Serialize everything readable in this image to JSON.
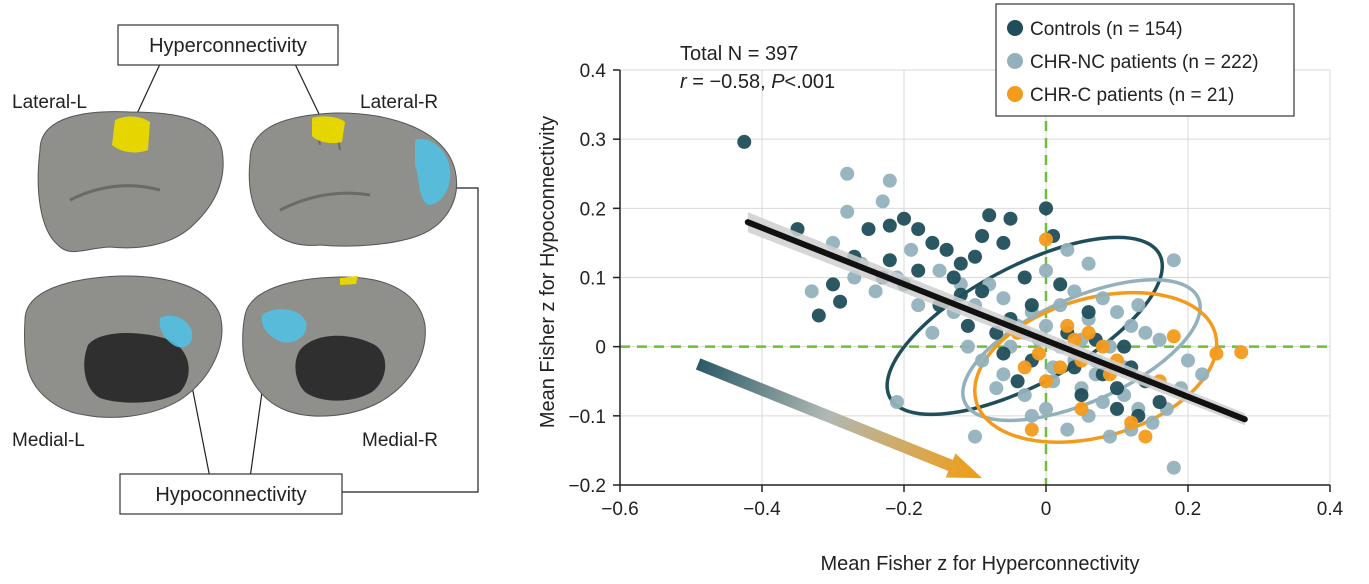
{
  "brain_figure": {
    "hyper_label": "Hyperconnectivity",
    "hypo_label": "Hypoconnectivity",
    "views": {
      "lateral_left": "Lateral-L",
      "lateral_right": "Lateral-R",
      "medial_left": "Medial-L",
      "medial_right": "Medial-R"
    },
    "colors": {
      "cortex": "#8f8f8c",
      "wall": "#2f2f2f",
      "hyper": "#e6d600",
      "hypo": "#4fc3e8"
    }
  },
  "chart_data": {
    "type": "scatter",
    "xlabel": "Mean Fisher z for Hyperconnectivity",
    "ylabel": "Mean Fisher z for Hypoconnectivity",
    "xlim": [
      -0.6,
      0.4
    ],
    "ylim": [
      -0.2,
      0.4
    ],
    "xticks": [
      "−0.6",
      "−0.4",
      "−0.2",
      "0",
      "0.2",
      "0.4"
    ],
    "yticks": [
      "−0.2",
      "−0.1",
      "0",
      "0.1",
      "0.2",
      "0.3",
      "0.4"
    ],
    "grid": true,
    "legend_position": "top-right",
    "annotation": {
      "line1": "Total N = 397",
      "r_label": "r",
      "r_value": " = −0.58, ",
      "p_label": "P",
      "p_value": "<.001"
    },
    "regression": {
      "x0": -0.42,
      "y0": 0.18,
      "x1": 0.28,
      "y1": -0.105,
      "color": "#111111",
      "band_color": "#cfcfcf"
    },
    "reference_lines": {
      "x": 0,
      "y": 0,
      "color": "#6cbf3a"
    },
    "arrow": {
      "from": [
        -0.49,
        -0.025
      ],
      "to": [
        -0.09,
        -0.19
      ],
      "color_start": "#2a5a66",
      "color_end": "#f39c12"
    },
    "series": [
      {
        "name": "Controls (n = 154)",
        "color": "#1f4e5a",
        "ellipse": {
          "cx": -0.03,
          "cy": 0.03,
          "rx": 0.215,
          "ry": 0.085,
          "angle_deg": -28
        },
        "points": [
          [
            -0.425,
            0.296
          ],
          [
            -0.3,
            0.09
          ],
          [
            -0.29,
            0.065
          ],
          [
            -0.32,
            0.045
          ],
          [
            -0.25,
            0.17
          ],
          [
            -0.22,
            0.125
          ],
          [
            -0.2,
            0.185
          ],
          [
            -0.18,
            0.17
          ],
          [
            -0.2,
            0.09
          ],
          [
            -0.16,
            0.15
          ],
          [
            -0.14,
            0.14
          ],
          [
            -0.12,
            0.12
          ],
          [
            -0.1,
            0.13
          ],
          [
            -0.08,
            0.19
          ],
          [
            -0.06,
            0.15
          ],
          [
            0.0,
            0.2
          ],
          [
            0.01,
            0.16
          ],
          [
            -0.03,
            0.1
          ],
          [
            -0.09,
            0.08
          ],
          [
            -0.12,
            0.075
          ],
          [
            -0.15,
            0.06
          ],
          [
            -0.11,
            0.03
          ],
          [
            -0.07,
            0.02
          ],
          [
            -0.06,
            -0.01
          ],
          [
            -0.02,
            0.06
          ],
          [
            0.03,
            0.02
          ],
          [
            0.06,
            0.05
          ],
          [
            0.08,
            -0.04
          ],
          [
            0.1,
            -0.06
          ],
          [
            0.12,
            -0.03
          ],
          [
            0.14,
            -0.05
          ],
          [
            0.16,
            -0.08
          ],
          [
            0.1,
            -0.09
          ],
          [
            0.05,
            -0.07
          ],
          [
            -0.04,
            -0.05
          ],
          [
            -0.27,
            0.13
          ],
          [
            -0.23,
            0.1
          ],
          [
            -0.18,
            0.11
          ],
          [
            -0.22,
            0.175
          ],
          [
            0.04,
            -0.03
          ],
          [
            -0.02,
            -0.02
          ],
          [
            0.07,
            0.01
          ],
          [
            -0.05,
            0.04
          ],
          [
            -0.13,
            0.1
          ],
          [
            0.02,
            0.09
          ],
          [
            -0.09,
            0.16
          ],
          [
            -0.05,
            0.185
          ],
          [
            -0.35,
            0.17
          ],
          [
            0.11,
            0.0
          ],
          [
            0.13,
            -0.1
          ]
        ]
      },
      {
        "name": "CHR-NC patients (n = 222)",
        "color": "#93b1bc",
        "ellipse": {
          "cx": 0.05,
          "cy": -0.005,
          "rx": 0.18,
          "ry": 0.075,
          "angle_deg": -24
        },
        "points": [
          [
            -0.28,
            0.25
          ],
          [
            -0.23,
            0.21
          ],
          [
            -0.28,
            0.195
          ],
          [
            -0.22,
            0.24
          ],
          [
            -0.3,
            0.15
          ],
          [
            -0.26,
            0.12
          ],
          [
            -0.27,
            0.1
          ],
          [
            -0.24,
            0.08
          ],
          [
            -0.21,
            0.1
          ],
          [
            -0.19,
            0.14
          ],
          [
            -0.15,
            0.11
          ],
          [
            -0.13,
            0.05
          ],
          [
            -0.1,
            0.06
          ],
          [
            -0.08,
            0.09
          ],
          [
            -0.06,
            0.07
          ],
          [
            -0.04,
            0.03
          ],
          [
            -0.02,
            0.05
          ],
          [
            0.0,
            0.03
          ],
          [
            0.02,
            0.06
          ],
          [
            0.04,
            0.08
          ],
          [
            0.06,
            0.04
          ],
          [
            0.08,
            0.07
          ],
          [
            0.1,
            0.05
          ],
          [
            0.12,
            0.03
          ],
          [
            0.14,
            0.02
          ],
          [
            0.16,
            0.01
          ],
          [
            0.18,
            0.125
          ],
          [
            0.2,
            -0.02
          ],
          [
            0.22,
            -0.04
          ],
          [
            0.19,
            -0.06
          ],
          [
            0.17,
            -0.09
          ],
          [
            0.15,
            -0.11
          ],
          [
            0.12,
            -0.12
          ],
          [
            0.09,
            -0.13
          ],
          [
            0.06,
            -0.1
          ],
          [
            0.03,
            -0.12
          ],
          [
            0.0,
            -0.09
          ],
          [
            -0.03,
            -0.07
          ],
          [
            -0.06,
            -0.04
          ],
          [
            -0.09,
            -0.02
          ],
          [
            -0.11,
            0.0
          ],
          [
            -0.07,
            -0.06
          ],
          [
            -0.02,
            -0.1
          ],
          [
            0.01,
            -0.05
          ],
          [
            0.05,
            -0.06
          ],
          [
            0.08,
            -0.08
          ],
          [
            0.11,
            -0.07
          ],
          [
            0.13,
            -0.09
          ],
          [
            0.02,
            0.0
          ],
          [
            0.04,
            -0.02
          ],
          [
            0.07,
            -0.02
          ],
          [
            0.09,
            0.0
          ],
          [
            0.11,
            -0.03
          ],
          [
            -0.01,
            0.01
          ],
          [
            -0.05,
            0.0
          ],
          [
            0.18,
            -0.175
          ],
          [
            -0.1,
            -0.13
          ],
          [
            -0.21,
            -0.08
          ],
          [
            -0.33,
            0.08
          ],
          [
            -0.16,
            0.02
          ],
          [
            -0.12,
            0.09
          ],
          [
            0.0,
            0.11
          ],
          [
            0.06,
            0.12
          ],
          [
            0.03,
            0.14
          ],
          [
            -0.18,
            0.06
          ],
          [
            0.13,
            0.06
          ],
          [
            0.05,
            0.01
          ],
          [
            0.07,
            -0.04
          ],
          [
            -0.03,
            0.02
          ],
          [
            0.01,
            -0.03
          ]
        ]
      },
      {
        "name": "CHR-C patients (n = 21)",
        "color": "#f39b1c",
        "ellipse": {
          "cx": 0.07,
          "cy": -0.03,
          "rx": 0.175,
          "ry": 0.1,
          "angle_deg": -16
        },
        "points": [
          [
            0.0,
            0.155
          ],
          [
            -0.04,
            0.02
          ],
          [
            -0.03,
            -0.03
          ],
          [
            -0.01,
            -0.01
          ],
          [
            0.0,
            -0.05
          ],
          [
            0.02,
            -0.03
          ],
          [
            0.04,
            0.01
          ],
          [
            0.05,
            -0.02
          ],
          [
            0.06,
            0.02
          ],
          [
            0.08,
            0.0
          ],
          [
            0.09,
            -0.04
          ],
          [
            0.1,
            -0.02
          ],
          [
            0.12,
            -0.11
          ],
          [
            0.14,
            -0.13
          ],
          [
            0.16,
            -0.05
          ],
          [
            0.18,
            0.015
          ],
          [
            0.24,
            -0.01
          ],
          [
            0.275,
            -0.008
          ],
          [
            0.05,
            -0.09
          ],
          [
            -0.02,
            -0.12
          ],
          [
            0.03,
            0.03
          ]
        ]
      }
    ]
  }
}
